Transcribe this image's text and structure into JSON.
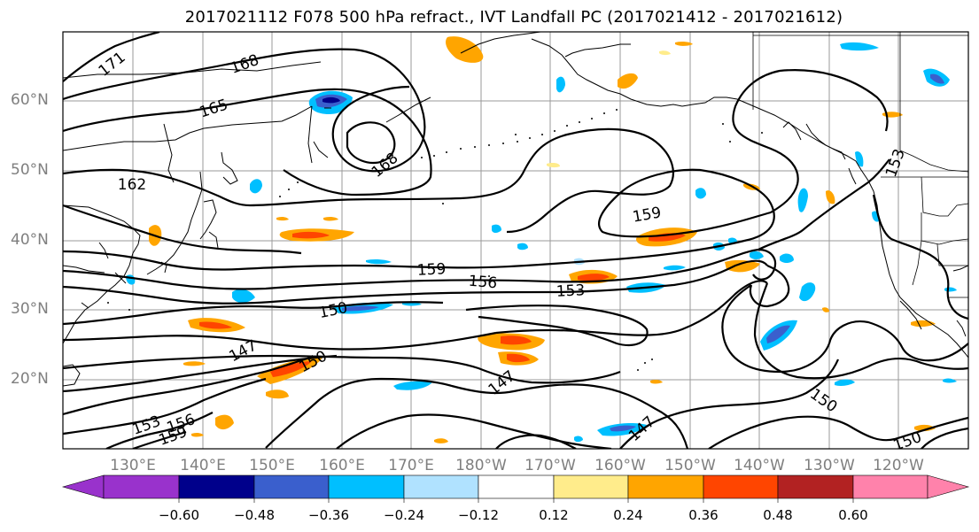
{
  "title": "2017021112 F078 500 hPa refract., IVT Landfall PC (2017021412 - 2017021612)",
  "lat_labels": [
    "60°N",
    "50°N",
    "40°N",
    "30°N",
    "20°N"
  ],
  "lon_labels": [
    "130°E",
    "140°E",
    "150°E",
    "160°E",
    "170°E",
    "180°W",
    "170°W",
    "160°W",
    "150°W",
    "140°W",
    "130°W",
    "120°W"
  ],
  "contour_labels": [
    "171",
    "168",
    "165",
    "168",
    "162",
    "159",
    "159",
    "156",
    "153",
    "150",
    "147",
    "150",
    "147",
    "147",
    "150",
    "153",
    "153",
    "156",
    "159",
    "150"
  ],
  "colorbar": {
    "tick_labels": [
      "−0.60",
      "−0.48",
      "−0.36",
      "−0.24",
      "−0.12",
      "0.12",
      "0.24",
      "0.36",
      "0.48",
      "0.60"
    ],
    "colors": [
      "#9932cc",
      "#00008b",
      "#3a5fcd",
      "#00bfff",
      "#b0e2ff",
      "#ffffff",
      "#ffec8b",
      "#ffa500",
      "#ff4500",
      "#b22222",
      "#ff82ab"
    ]
  }
}
